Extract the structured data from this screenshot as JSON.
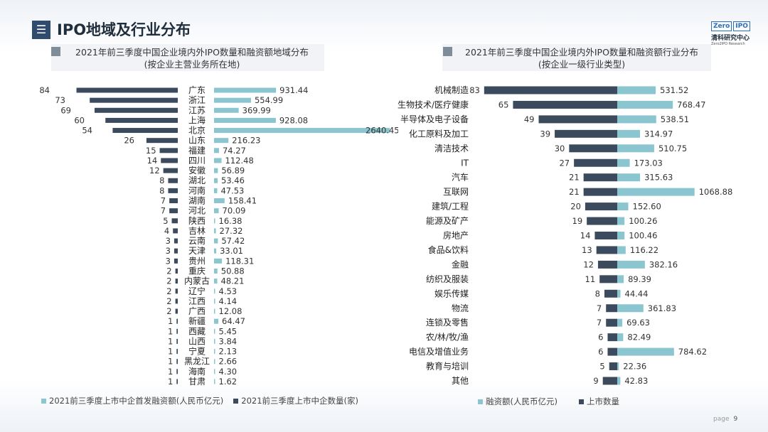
{
  "header": {
    "icon": "menu-icon",
    "title": "IPO地域及行业分布"
  },
  "logo": {
    "mark_left": "Zero",
    "mark_right": "IPO",
    "name": "清科研究中心",
    "sub": "Zero2IPO Research"
  },
  "colors": {
    "financing": "#8bc5cf",
    "count": "#3b4a5c",
    "header": "#2f4b6e"
  },
  "chart_data": [
    {
      "type": "bar",
      "title": "2021年前三季度中国企业境内外IPO数量和融资额地域分布",
      "subtitle": "(按企业主营业务所在地)",
      "categories": [
        "广东",
        "浙江",
        "江苏",
        "上海",
        "北京",
        "山东",
        "福建",
        "四川",
        "安徽",
        "湖北",
        "河南",
        "湖南",
        "河北",
        "陕西",
        "吉林",
        "云南",
        "天津",
        "贵州",
        "重庆",
        "内蒙古",
        "辽宁",
        "江西",
        "广西",
        "新疆",
        "西藏",
        "山西",
        "宁夏",
        "黑龙江",
        "海南",
        "甘肃"
      ],
      "series": [
        {
          "name": "2021前三季度上市中企数量(家)",
          "values": [
            84,
            73,
            69,
            60,
            54,
            26,
            15,
            14,
            12,
            8,
            8,
            7,
            7,
            5,
            4,
            3,
            3,
            3,
            2,
            2,
            2,
            2,
            2,
            1,
            1,
            1,
            1,
            1,
            1,
            1
          ]
        },
        {
          "name": "2021前三季度上市中企首发融资额(人民币亿元)",
          "values": [
            931.44,
            554.99,
            369.99,
            928.08,
            2640.45,
            216.23,
            74.27,
            112.48,
            56.89,
            53.46,
            47.53,
            158.41,
            70.09,
            16.38,
            27.32,
            57.42,
            33.01,
            118.31,
            50.88,
            48.21,
            4.53,
            4.14,
            12.08,
            64.47,
            5.45,
            3.84,
            2.13,
            2.66,
            4.3,
            1.62
          ]
        }
      ],
      "labels": {
        "financing": [
          "931.44",
          "554.99",
          "369.99",
          "928.08",
          "2640.45",
          "216.23",
          "74.27",
          "112.48",
          "56.89",
          "53.46",
          "47.53",
          "158.41",
          "70.09",
          "16.38",
          "27.32",
          "57.42",
          "33.01",
          "118.31",
          "50.88",
          "48.21",
          "4.53",
          "4.14",
          "12.08",
          "64.47",
          "5.45",
          "3.84",
          "2.13",
          "2.66",
          "4.30",
          "1.62"
        ]
      },
      "legend": [
        "2021前三季度上市中企首发融资额(人民币亿元)",
        "2021前三季度上市中企数量(家)"
      ]
    },
    {
      "type": "bar",
      "title": "2021年前三季度中国企业境内外IPO数量和融资额行业分布",
      "subtitle": "(按企业一级行业类型)",
      "categories": [
        "机械制造",
        "生物技术/医疗健康",
        "半导体及电子设备",
        "化工原料及加工",
        "清洁技术",
        "IT",
        "汽车",
        "互联网",
        "建筑/工程",
        "能源及矿产",
        "房地产",
        "食品&饮料",
        "金融",
        "纺织及服装",
        "娱乐传媒",
        "物流",
        "连锁及零售",
        "农/林/牧/渔",
        "电信及增值业务",
        "教育与培训",
        "其他"
      ],
      "series": [
        {
          "name": "上市数量",
          "values": [
            83,
            65,
            49,
            39,
            30,
            27,
            21,
            21,
            20,
            19,
            14,
            13,
            12,
            11,
            8,
            7,
            7,
            6,
            6,
            5,
            9
          ]
        },
        {
          "name": "融资额(人民币亿元)",
          "values": [
            531.52,
            768.47,
            538.51,
            314.97,
            510.75,
            173.03,
            315.63,
            1068.88,
            152.6,
            100.26,
            100.46,
            116.22,
            382.16,
            89.39,
            44.44,
            361.83,
            69.63,
            82.49,
            784.62,
            22.36,
            42.83
          ]
        }
      ],
      "labels": {
        "financing": [
          "531.52",
          "768.47",
          "538.51",
          "314.97",
          "510.75",
          "173.03",
          "315.63",
          "1068.88",
          "152.60",
          "100.26",
          "100.46",
          "116.22",
          "382.16",
          "89.39",
          "44.44",
          "361.83",
          "69.63",
          "82.49",
          "784.62",
          "22.36",
          "42.83"
        ]
      },
      "legend": [
        "融资额(人民币亿元)",
        "上市数量"
      ]
    }
  ],
  "footer": {
    "page_label": "page",
    "page_number": "9"
  }
}
